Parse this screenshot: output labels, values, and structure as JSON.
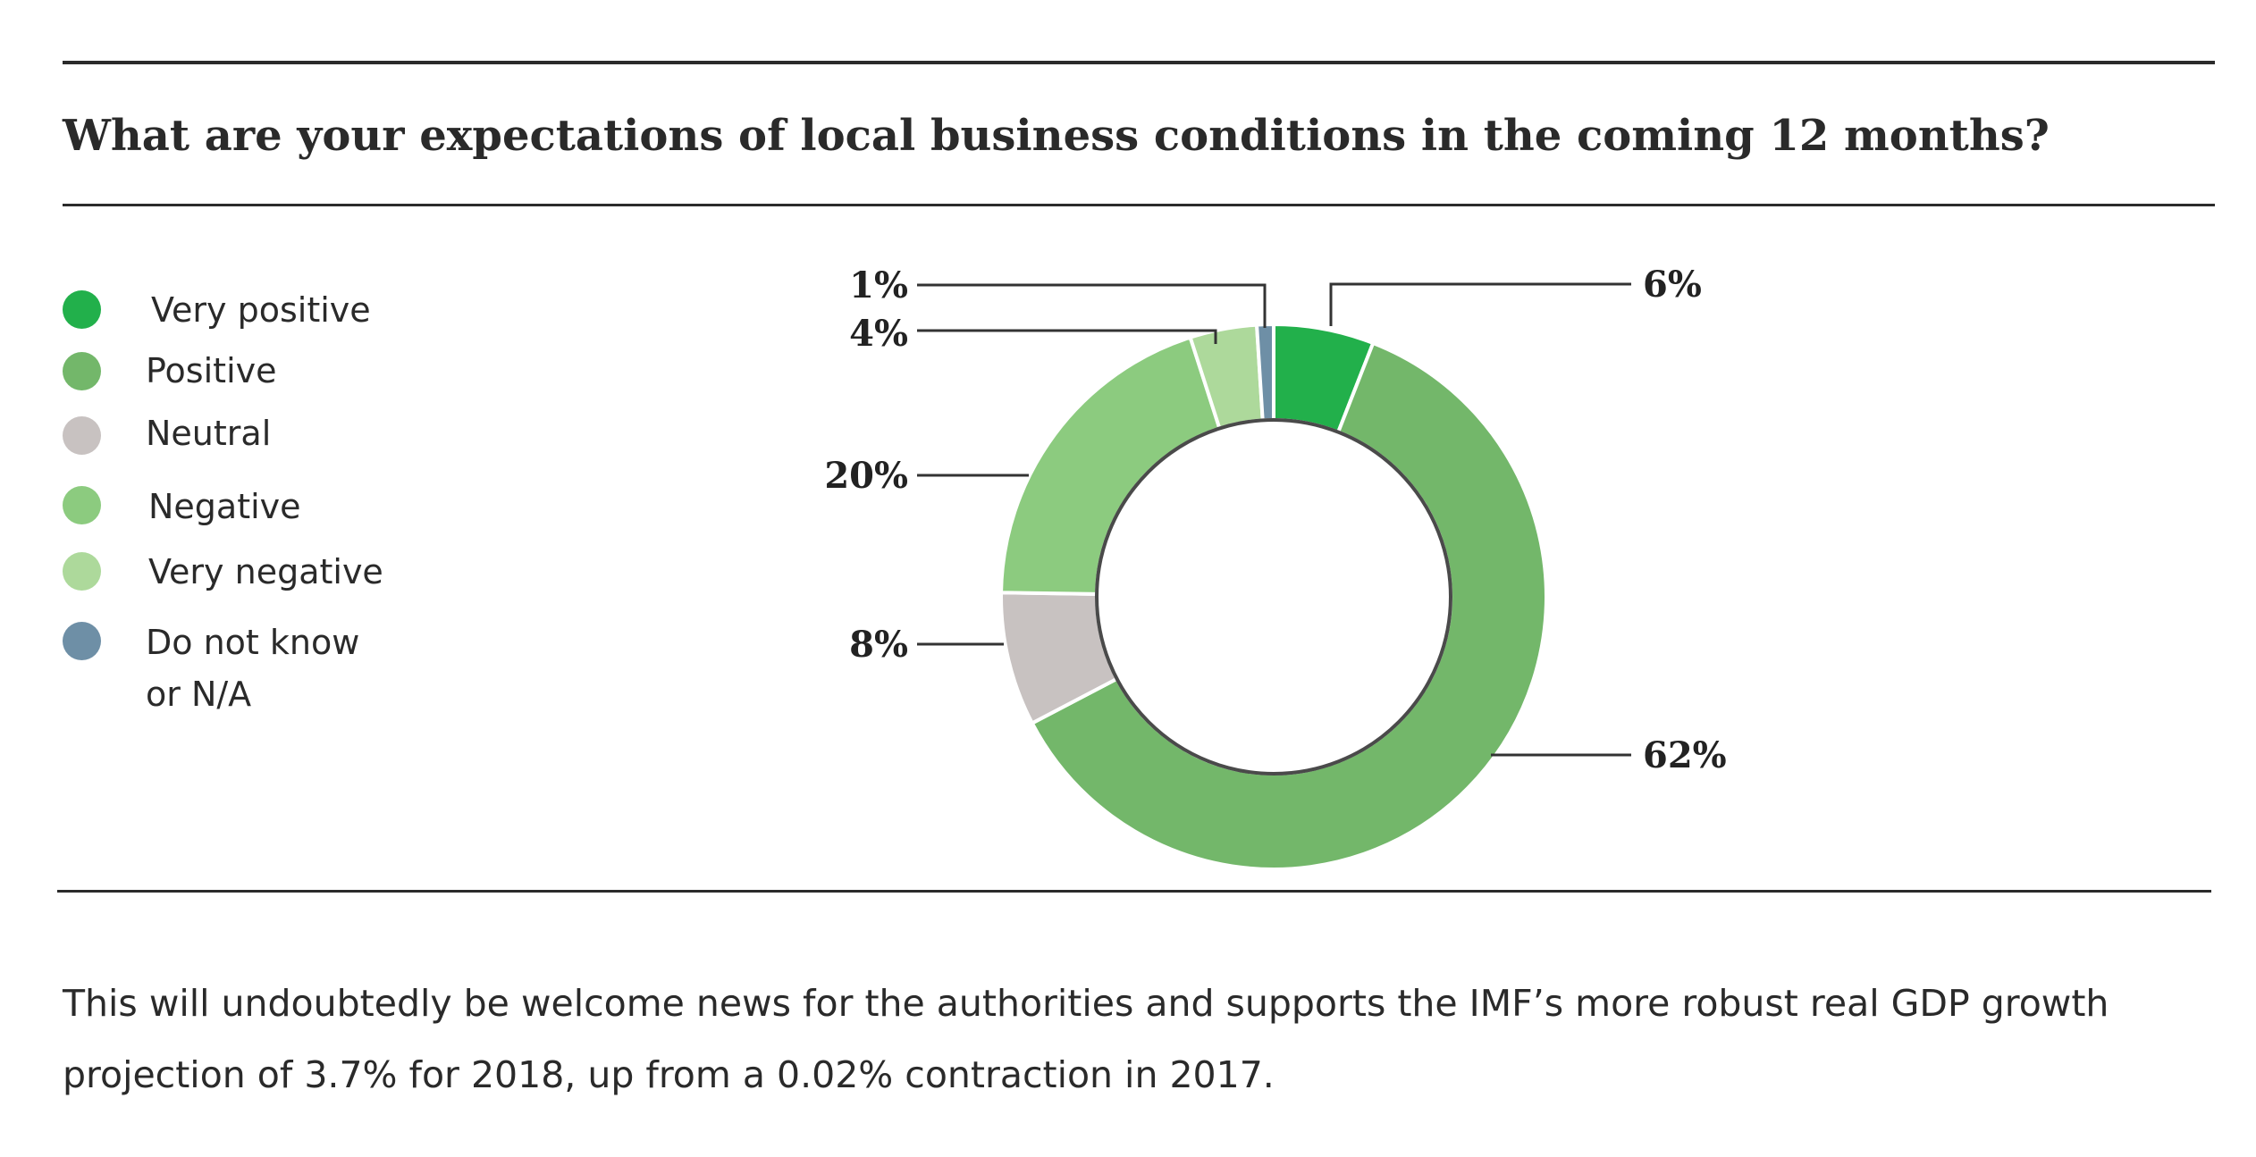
{
  "colors": {
    "very_positive": "#22b04b",
    "positive": "#73b76a",
    "neutral": "#c8c2c1",
    "negative": "#8ccb7f",
    "very_negative": "#add99b",
    "do_not_know": "#6e8fa6",
    "rule": "#2b2b2b",
    "inner_circle": "#4a4a4a"
  },
  "chart_data": {
    "type": "pie",
    "variant": "donut",
    "title": "What are your expectations of local business conditions in the coming 12 months?",
    "legend_position": "left",
    "slices": [
      {
        "key": "very_positive",
        "label": "Very positive",
        "value": 6,
        "display": "6%"
      },
      {
        "key": "positive",
        "label": "Positive",
        "value": 62,
        "display": "62%"
      },
      {
        "key": "neutral",
        "label": "Neutral",
        "value": 8,
        "display": "8%"
      },
      {
        "key": "negative",
        "label": "Negative",
        "value": 20,
        "display": "20%"
      },
      {
        "key": "very_negative",
        "label": "Very negative",
        "value": 4,
        "display": "4%"
      },
      {
        "key": "do_not_know",
        "label": "Do not know or N/A",
        "value": 1,
        "display": "1%"
      }
    ]
  },
  "legend": {
    "items": [
      {
        "lines": [
          "Very positive"
        ]
      },
      {
        "lines": [
          "Positive"
        ]
      },
      {
        "lines": [
          "Neutral"
        ]
      },
      {
        "lines": [
          "Negative"
        ]
      },
      {
        "lines": [
          "Very negative"
        ]
      },
      {
        "lines": [
          "Do not know",
          "or N/A"
        ]
      }
    ]
  },
  "body_text": "This will undoubtedly be welcome news for the authorities and supports the IMF’s more robust real GDP growth projection of 3.7% for 2018, up from a 0.02% contraction in 2017."
}
